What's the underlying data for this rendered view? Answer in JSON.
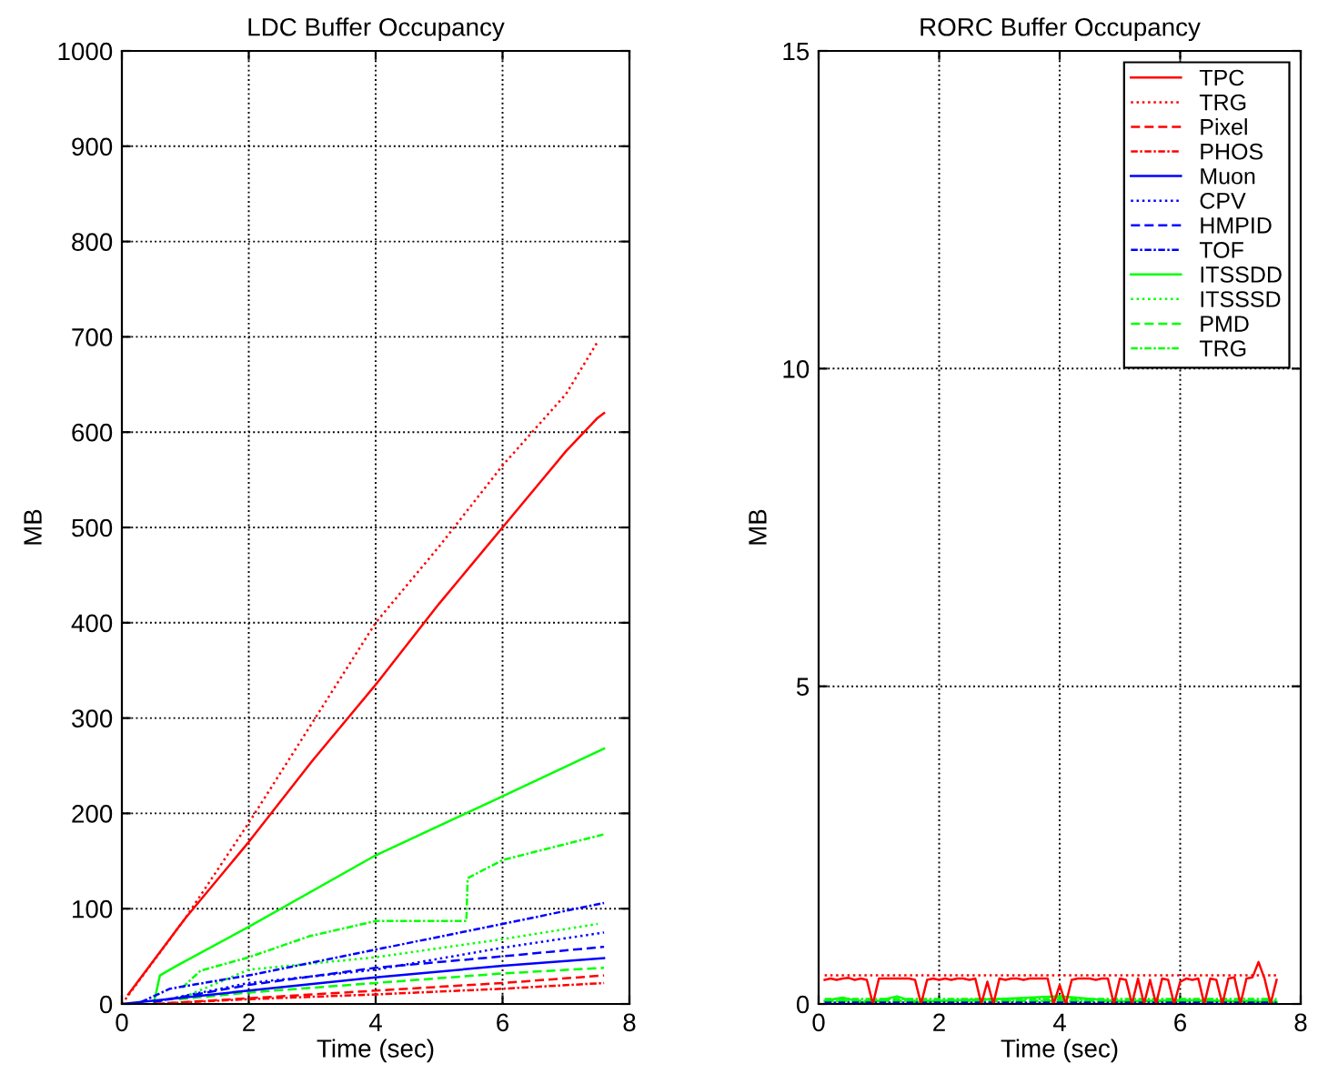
{
  "chart_data": [
    {
      "type": "line",
      "title": "LDC Buffer Occupancy",
      "xlabel": "Time (sec)",
      "ylabel": "MB",
      "xlim": [
        0,
        8
      ],
      "xticks": [
        0,
        2,
        4,
        6,
        8
      ],
      "ylim": [
        0,
        1000
      ],
      "yticks": [
        0,
        100,
        200,
        300,
        400,
        500,
        600,
        700,
        800,
        900,
        1000
      ],
      "grid": true,
      "legend": false,
      "series": [
        {
          "color": "#ff0000",
          "line_style": "solid",
          "x": [
            0.1,
            1,
            2,
            3,
            4,
            5,
            6,
            7,
            7.5,
            7.6
          ],
          "values": [
            10,
            90,
            170,
            255,
            335,
            420,
            500,
            580,
            615,
            620
          ]
        },
        {
          "color": "#ff0000",
          "line_style": "dotted",
          "x": [
            0,
            1,
            2,
            3,
            4,
            5,
            6,
            7,
            7.5
          ],
          "values": [
            0,
            90,
            190,
            295,
            400,
            480,
            565,
            640,
            695
          ]
        },
        {
          "color": "#ff0000",
          "line_style": "dashed",
          "x": [
            0.5,
            2,
            4,
            6,
            7.6
          ],
          "values": [
            0,
            6,
            14,
            22,
            30
          ]
        },
        {
          "color": "#ff0000",
          "line_style": "dashdot",
          "x": [
            0.5,
            2,
            4,
            6,
            7.6
          ],
          "values": [
            0,
            5,
            10,
            16,
            22
          ]
        },
        {
          "color": "#0000ff",
          "line_style": "solid",
          "x": [
            0,
            2,
            4,
            6,
            7.6
          ],
          "values": [
            0,
            14,
            28,
            40,
            48
          ]
        },
        {
          "color": "#0000ff",
          "line_style": "dotted",
          "x": [
            0.5,
            2,
            4,
            6,
            7.6
          ],
          "values": [
            2,
            22,
            36,
            59,
            75
          ]
        },
        {
          "color": "#0000ff",
          "line_style": "dashed",
          "x": [
            0.5,
            2,
            4,
            6,
            7.6
          ],
          "values": [
            2,
            20,
            38,
            50,
            60
          ]
        },
        {
          "color": "#0000ff",
          "line_style": "dashdot",
          "x": [
            0.3,
            0.76,
            2,
            4,
            6,
            7.6
          ],
          "values": [
            2,
            16,
            30,
            57,
            84,
            106
          ]
        },
        {
          "color": "#00ff00",
          "line_style": "solid",
          "x": [
            0.5,
            0.6,
            0.86,
            2,
            4,
            6,
            7.6
          ],
          "values": [
            0,
            30,
            40,
            81,
            156,
            218,
            268
          ]
        },
        {
          "color": "#00ff00",
          "line_style": "dotted",
          "x": [
            0.9,
            2,
            4,
            6,
            7.5
          ],
          "values": [
            5,
            36,
            49,
            68,
            84
          ]
        },
        {
          "color": "#00ff00",
          "line_style": "dashed",
          "x": [
            0.9,
            2,
            4,
            6,
            7.6
          ],
          "values": [
            5,
            12,
            22,
            32,
            38
          ]
        },
        {
          "color": "#00ff00",
          "line_style": "dashdot",
          "x": [
            0.95,
            1.24,
            2,
            2.95,
            4,
            5.43,
            5.45,
            6,
            7.6
          ],
          "values": [
            17,
            35,
            49,
            71,
            87,
            87,
            132,
            151,
            178
          ]
        }
      ]
    },
    {
      "type": "line",
      "title": "RORC Buffer Occupancy",
      "xlabel": "Time (sec)",
      "ylabel": "MB",
      "xlim": [
        0,
        8
      ],
      "xticks": [
        0,
        2,
        4,
        6,
        8
      ],
      "ylim": [
        0,
        15
      ],
      "yticks": [
        0,
        5,
        10,
        15
      ],
      "grid": true,
      "legend": "top right",
      "series": [
        {
          "name": "TPC",
          "color": "#ff0000",
          "line_style": "solid",
          "x": [
            0.1,
            0.2,
            0.3,
            0.4,
            0.5,
            0.6,
            0.7,
            0.8,
            0.9,
            1.0,
            1.1,
            1.2,
            1.3,
            1.4,
            1.5,
            1.6,
            1.7,
            1.8,
            1.9,
            2.0,
            2.1,
            2.2,
            2.3,
            2.4,
            2.5,
            2.6,
            2.7,
            2.8,
            2.9,
            3.0,
            3.1,
            3.2,
            3.3,
            3.4,
            3.5,
            3.6,
            3.7,
            3.8,
            3.9,
            4.0,
            4.1,
            4.2,
            4.3,
            4.4,
            4.5,
            4.6,
            4.7,
            4.8,
            4.9,
            5.0,
            5.1,
            5.2,
            5.3,
            5.4,
            5.5,
            5.6,
            5.7,
            5.8,
            5.9,
            6.0,
            6.1,
            6.2,
            6.3,
            6.4,
            6.5,
            6.6,
            6.7,
            6.8,
            6.9,
            7.0,
            7.1,
            7.2,
            7.3,
            7.4,
            7.5,
            7.6
          ],
          "values": [
            0.38,
            0.4,
            0.38,
            0.4,
            0.41,
            0.38,
            0.4,
            0.38,
            0.0,
            0.4,
            0.4,
            0.4,
            0.4,
            0.4,
            0.4,
            0.38,
            0.0,
            0.38,
            0.4,
            0.38,
            0.4,
            0.38,
            0.4,
            0.4,
            0.38,
            0.4,
            0.0,
            0.35,
            0.0,
            0.4,
            0.38,
            0.4,
            0.4,
            0.38,
            0.4,
            0.4,
            0.4,
            0.4,
            0.0,
            0.3,
            0.0,
            0.38,
            0.4,
            0.4,
            0.4,
            0.38,
            0.4,
            0.4,
            0.0,
            0.4,
            0.38,
            0.0,
            0.4,
            0.0,
            0.38,
            0.0,
            0.4,
            0.38,
            0.0,
            0.35,
            0.4,
            0.38,
            0.4,
            0.0,
            0.4,
            0.38,
            0.0,
            0.4,
            0.42,
            0.0,
            0.4,
            0.42,
            0.66,
            0.4,
            0.0,
            0.38
          ]
        },
        {
          "name": "TRG",
          "color": "#ff0000",
          "line_style": "dotted",
          "x": [
            0.1,
            7.6
          ],
          "values": [
            0.45,
            0.45
          ]
        },
        {
          "name": "Pixel",
          "color": "#ff0000",
          "line_style": "dashed"
        },
        {
          "name": "PHOS",
          "color": "#ff0000",
          "line_style": "dashdot"
        },
        {
          "name": "Muon",
          "color": "#0000ff",
          "line_style": "solid",
          "x": [
            0.1,
            7.6
          ],
          "values": [
            0,
            0
          ]
        },
        {
          "name": "CPV",
          "color": "#0000ff",
          "line_style": "dotted"
        },
        {
          "name": "HMPID",
          "color": "#0000ff",
          "line_style": "dashed"
        },
        {
          "name": "TOF",
          "color": "#0000ff",
          "line_style": "dashdot",
          "x": [
            0.1,
            7.6
          ],
          "values": [
            0.02,
            0.02
          ]
        },
        {
          "name": "ITSSDD",
          "color": "#00ff00",
          "line_style": "solid",
          "x": [
            0.1,
            0.4,
            0.7,
            1.0,
            1.3,
            1.6,
            2.0,
            3.0,
            4.0,
            5.0,
            6.0,
            7.6
          ],
          "values": [
            0.05,
            0.1,
            0.03,
            0.05,
            0.12,
            0.03,
            0.05,
            0.08,
            0.12,
            0.04,
            0.06,
            0.03
          ]
        },
        {
          "name": "ITSSSD",
          "color": "#00ff00",
          "line_style": "dotted",
          "x": [
            0.1,
            7.6
          ],
          "values": [
            0.05,
            0.05
          ]
        },
        {
          "name": "PMD",
          "color": "#00ff00",
          "line_style": "dashed",
          "x": [
            0.1,
            7.6
          ],
          "values": [
            0.05,
            0.05
          ]
        },
        {
          "name": "TRG",
          "color": "#00ff00",
          "line_style": "dashdot",
          "x": [
            0.1,
            7.6
          ],
          "values": [
            0.08,
            0.08
          ]
        }
      ]
    }
  ]
}
